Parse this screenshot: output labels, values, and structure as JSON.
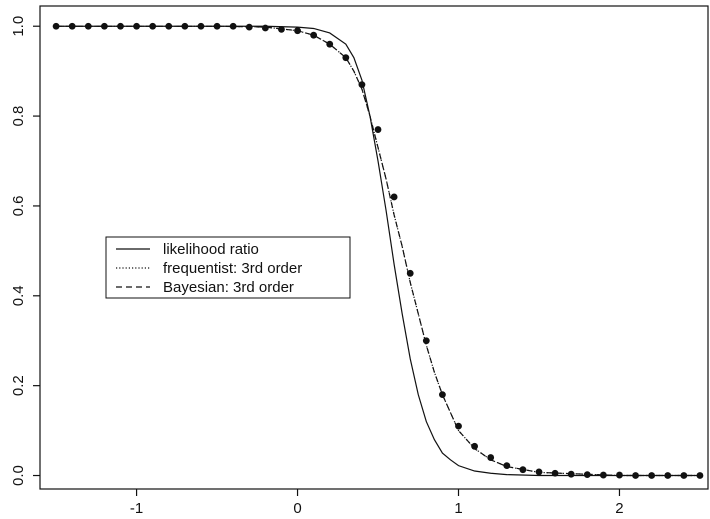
{
  "chart_data": {
    "type": "line",
    "title": "",
    "xlabel": "",
    "ylabel": "",
    "xlim": [
      -1.6,
      2.55
    ],
    "ylim": [
      -0.03,
      1.045
    ],
    "xticks": [
      -1,
      0,
      1,
      2
    ],
    "xtick_labels": [
      "-1",
      "0",
      "1",
      "2"
    ],
    "yticks": [
      0.0,
      0.2,
      0.4,
      0.6,
      0.8,
      1.0
    ],
    "ytick_labels": [
      "0.0",
      "0.2",
      "0.4",
      "0.6",
      "0.8",
      "1.0"
    ],
    "grid": false,
    "legend": {
      "placement": "center-left",
      "entries": [
        {
          "label": "likelihood ratio",
          "style": "solid"
        },
        {
          "label": "frequentist: 3rd order",
          "style": "dotted"
        },
        {
          "label": "Bayesian: 3rd order",
          "style": "dashed"
        }
      ]
    },
    "series": [
      {
        "name": "likelihood ratio",
        "style": "solid",
        "x": [
          -1.5,
          -1.0,
          -0.5,
          -0.2,
          0.0,
          0.1,
          0.2,
          0.3,
          0.35,
          0.4,
          0.45,
          0.5,
          0.55,
          0.6,
          0.65,
          0.7,
          0.75,
          0.8,
          0.85,
          0.9,
          0.95,
          1.0,
          1.1,
          1.2,
          1.3,
          1.5,
          2.0,
          2.5
        ],
        "y": [
          1.0,
          1.0,
          1.0,
          1.0,
          0.998,
          0.995,
          0.985,
          0.96,
          0.93,
          0.88,
          0.8,
          0.7,
          0.59,
          0.47,
          0.36,
          0.26,
          0.18,
          0.12,
          0.08,
          0.05,
          0.035,
          0.022,
          0.01,
          0.005,
          0.002,
          0.0,
          0.0,
          0.0
        ]
      },
      {
        "name": "frequentist: 3rd order",
        "style": "dotted",
        "x": [
          -1.5,
          -1.0,
          -0.5,
          -0.2,
          0.0,
          0.1,
          0.2,
          0.3,
          0.35,
          0.4,
          0.45,
          0.5,
          0.55,
          0.6,
          0.65,
          0.7,
          0.75,
          0.8,
          0.85,
          0.9,
          0.95,
          1.0,
          1.1,
          1.2,
          1.3,
          1.5,
          2.0,
          2.5
        ],
        "y": [
          1.0,
          1.0,
          1.0,
          0.998,
          0.99,
          0.98,
          0.96,
          0.93,
          0.9,
          0.86,
          0.8,
          0.73,
          0.66,
          0.58,
          0.51,
          0.43,
          0.36,
          0.29,
          0.23,
          0.18,
          0.14,
          0.1,
          0.06,
          0.035,
          0.02,
          0.007,
          0.0,
          0.0
        ]
      },
      {
        "name": "Bayesian: 3rd order",
        "style": "dashed",
        "x": [
          -1.5,
          -1.0,
          -0.5,
          -0.2,
          0.0,
          0.1,
          0.2,
          0.3,
          0.35,
          0.4,
          0.45,
          0.5,
          0.55,
          0.6,
          0.65,
          0.7,
          0.75,
          0.8,
          0.85,
          0.9,
          0.95,
          1.0,
          1.1,
          1.2,
          1.3,
          1.5,
          2.0,
          2.5
        ],
        "y": [
          1.0,
          1.0,
          1.0,
          0.998,
          0.99,
          0.98,
          0.96,
          0.93,
          0.9,
          0.86,
          0.8,
          0.73,
          0.66,
          0.58,
          0.51,
          0.43,
          0.36,
          0.29,
          0.23,
          0.18,
          0.14,
          0.1,
          0.06,
          0.035,
          0.02,
          0.007,
          0.0,
          0.0
        ]
      }
    ],
    "points": {
      "x": [
        -1.5,
        -1.4,
        -1.3,
        -1.2,
        -1.1,
        -1.0,
        -0.9,
        -0.8,
        -0.7,
        -0.6,
        -0.5,
        -0.4,
        -0.3,
        -0.2,
        -0.1,
        0.0,
        0.1,
        0.2,
        0.3,
        0.4,
        0.5,
        0.6,
        0.7,
        0.8,
        0.9,
        1.0,
        1.1,
        1.2,
        1.3,
        1.4,
        1.5,
        1.6,
        1.7,
        1.8,
        1.9,
        2.0,
        2.1,
        2.2,
        2.3,
        2.4,
        2.5
      ],
      "y": [
        1.0,
        1.0,
        1.0,
        1.0,
        1.0,
        1.0,
        1.0,
        1.0,
        1.0,
        1.0,
        1.0,
        1.0,
        0.998,
        0.996,
        0.993,
        0.99,
        0.98,
        0.96,
        0.93,
        0.87,
        0.77,
        0.62,
        0.45,
        0.3,
        0.18,
        0.11,
        0.065,
        0.04,
        0.022,
        0.013,
        0.008,
        0.005,
        0.003,
        0.002,
        0.001,
        0.001,
        0.0,
        0.0,
        0.0,
        0.0,
        0.0
      ]
    }
  }
}
